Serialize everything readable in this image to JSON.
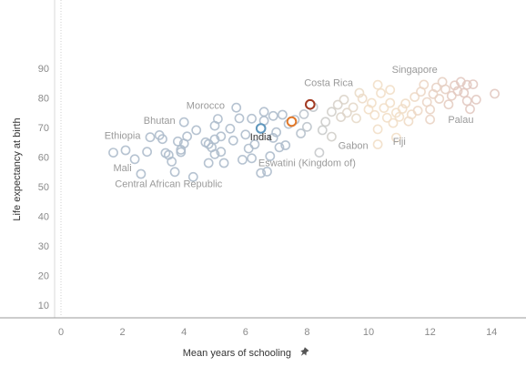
{
  "chart_data": {
    "type": "scatter",
    "xlabel": "Mean years of schooling",
    "ylabel": "Life expectancy at birth",
    "xlim": [
      -0.2,
      15.3
    ],
    "ylim": [
      7,
      91
    ],
    "xticks": [
      0,
      2,
      4,
      6,
      8,
      10,
      12,
      14
    ],
    "yticks": [
      10,
      20,
      30,
      40,
      50,
      60,
      70,
      80,
      90
    ],
    "grid": false,
    "colors": {
      "low": "#aebdcc",
      "high": "#e2c9c1",
      "mid": "#f2dfc8",
      "highlight_india": "#5f97bd",
      "highlight_orange": "#e0782a",
      "highlight_red": "#a23a22",
      "axis": "#cccccc",
      "ref_line": "#cccccc"
    },
    "labels": [
      {
        "text": "Costa Rica",
        "x": 8.7,
        "y": 84,
        "highlight": false
      },
      {
        "text": "Singapore",
        "x": 11.5,
        "y": 88.5,
        "highlight": false
      },
      {
        "text": "Morocco",
        "x": 4.7,
        "y": 76.3,
        "highlight": false
      },
      {
        "text": "Bhutan",
        "x": 3.2,
        "y": 71.3,
        "highlight": false
      },
      {
        "text": "Ethiopia",
        "x": 2.0,
        "y": 66.2,
        "highlight": false
      },
      {
        "text": "India",
        "x": 6.5,
        "y": 65.7,
        "highlight": true
      },
      {
        "text": "Gabon",
        "x": 9.5,
        "y": 62.7,
        "highlight": false
      },
      {
        "text": "Fiji",
        "x": 11.0,
        "y": 64.2,
        "highlight": false
      },
      {
        "text": "Palau",
        "x": 13.0,
        "y": 71.5,
        "highlight": false
      },
      {
        "text": "Mali",
        "x": 2.0,
        "y": 55.2,
        "highlight": false
      },
      {
        "text": "Eswatini (Kingdom of)",
        "x": 8.0,
        "y": 57.0,
        "highlight": false
      },
      {
        "text": "Central African Republic",
        "x": 3.5,
        "y": 49.8,
        "highlight": false
      }
    ],
    "highlighted_points": [
      {
        "name": "India",
        "x": 6.5,
        "y": 69.7,
        "color": "#5f97bd"
      },
      {
        "x": 7.5,
        "y": 72.0,
        "color": "#e0782a"
      },
      {
        "x": 8.1,
        "y": 77.8,
        "color": "#a23a22"
      }
    ],
    "points": [
      [
        1.7,
        61.5
      ],
      [
        2.1,
        62.3
      ],
      [
        2.4,
        59.3
      ],
      [
        2.6,
        54.3
      ],
      [
        2.8,
        61.8
      ],
      [
        2.9,
        66.7
      ],
      [
        3.2,
        67.4
      ],
      [
        3.3,
        66.1
      ],
      [
        3.4,
        61.4
      ],
      [
        3.5,
        60.7
      ],
      [
        3.6,
        58.5
      ],
      [
        3.7,
        55.0
      ],
      [
        3.8,
        65.3
      ],
      [
        3.9,
        62.5
      ],
      [
        3.9,
        61.7
      ],
      [
        4.0,
        64.6
      ],
      [
        4.0,
        71.8
      ],
      [
        4.1,
        67.0
      ],
      [
        4.3,
        53.3
      ],
      [
        4.4,
        69.1
      ],
      [
        4.7,
        65.0
      ],
      [
        4.8,
        64.4
      ],
      [
        4.8,
        58.0
      ],
      [
        4.9,
        63.3
      ],
      [
        5.0,
        61.0
      ],
      [
        5.0,
        66.0
      ],
      [
        5.0,
        70.6
      ],
      [
        5.1,
        72.9
      ],
      [
        5.2,
        67.0
      ],
      [
        5.2,
        61.8
      ],
      [
        5.3,
        58.0
      ],
      [
        5.5,
        69.6
      ],
      [
        5.6,
        65.6
      ],
      [
        5.7,
        76.7
      ],
      [
        5.8,
        73.1
      ],
      [
        5.9,
        59.1
      ],
      [
        6.0,
        67.6
      ],
      [
        6.1,
        62.9
      ],
      [
        6.2,
        73.0
      ],
      [
        6.2,
        59.6
      ],
      [
        6.3,
        64.3
      ],
      [
        6.5,
        54.6
      ],
      [
        6.6,
        75.3
      ],
      [
        6.6,
        72.3
      ],
      [
        6.7,
        55.1
      ],
      [
        6.8,
        60.3
      ],
      [
        6.9,
        73.9
      ],
      [
        6.9,
        66.5
      ],
      [
        7.0,
        68.4
      ],
      [
        7.1,
        63.3
      ],
      [
        7.2,
        74.3
      ],
      [
        7.3,
        64.0
      ],
      [
        7.4,
        71.2
      ],
      [
        7.6,
        72.6
      ],
      [
        7.8,
        68.0
      ],
      [
        7.9,
        74.5
      ],
      [
        8.0,
        70.2
      ],
      [
        8.2,
        76.9
      ],
      [
        8.4,
        61.5
      ],
      [
        8.5,
        69.1
      ],
      [
        8.6,
        71.9
      ],
      [
        8.8,
        75.3
      ],
      [
        8.8,
        66.9
      ],
      [
        9.0,
        77.7
      ],
      [
        9.1,
        73.5
      ],
      [
        9.2,
        79.4
      ],
      [
        9.3,
        75.0
      ],
      [
        9.5,
        76.8
      ],
      [
        9.6,
        73.1
      ],
      [
        9.7,
        81.7
      ],
      [
        9.8,
        79.8
      ],
      [
        10.0,
        76.1
      ],
      [
        10.1,
        78.3
      ],
      [
        10.2,
        74.2
      ],
      [
        10.3,
        64.3
      ],
      [
        10.3,
        69.4
      ],
      [
        10.3,
        84.4
      ],
      [
        10.4,
        81.6
      ],
      [
        10.5,
        76.6
      ],
      [
        10.6,
        73.3
      ],
      [
        10.7,
        82.7
      ],
      [
        10.7,
        78.3
      ],
      [
        10.8,
        71.5
      ],
      [
        10.9,
        75.0
      ],
      [
        10.9,
        66.6
      ],
      [
        11.0,
        73.6
      ],
      [
        11.1,
        76.3
      ],
      [
        11.2,
        78.1
      ],
      [
        11.3,
        72.1
      ],
      [
        11.4,
        74.4
      ],
      [
        11.5,
        80.3
      ],
      [
        11.6,
        75.7
      ],
      [
        11.7,
        82.1
      ],
      [
        11.8,
        84.5
      ],
      [
        11.9,
        78.6
      ],
      [
        12.0,
        76.1
      ],
      [
        12.0,
        72.7
      ],
      [
        12.1,
        81.3
      ],
      [
        12.2,
        83.5
      ],
      [
        12.3,
        79.7
      ],
      [
        12.4,
        85.4
      ],
      [
        12.5,
        82.9
      ],
      [
        12.6,
        77.8
      ],
      [
        12.7,
        80.7
      ],
      [
        12.8,
        84.2
      ],
      [
        12.9,
        82.3
      ],
      [
        13.0,
        85.4
      ],
      [
        13.1,
        81.7
      ],
      [
        13.2,
        79.0
      ],
      [
        13.2,
        84.4
      ],
      [
        13.3,
        76.2
      ],
      [
        13.4,
        84.6
      ],
      [
        13.5,
        79.4
      ],
      [
        14.1,
        81.4
      ]
    ]
  }
}
